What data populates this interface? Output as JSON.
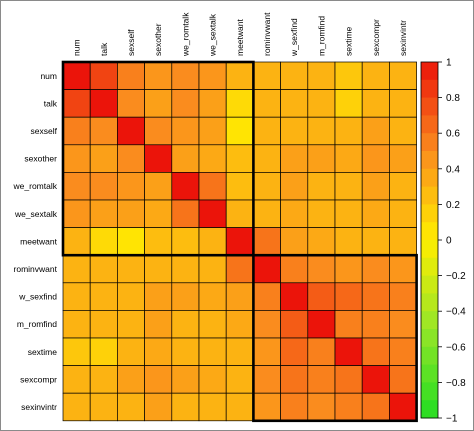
{
  "chart_data": {
    "type": "heatmap",
    "title": "",
    "variables": [
      "num",
      "talk",
      "sexself",
      "sexother",
      "we_romtalk",
      "we_sextalk",
      "meetwant",
      "rominvwant",
      "w_sexfind",
      "m_romfind",
      "sextime",
      "sexcompr",
      "sexinvintr"
    ],
    "matrix": [
      [
        1.0,
        0.8,
        0.55,
        0.45,
        0.5,
        0.45,
        0.3,
        0.3,
        0.3,
        0.3,
        0.2,
        0.3,
        0.3
      ],
      [
        0.8,
        1.0,
        0.5,
        0.4,
        0.5,
        0.4,
        0.1,
        0.3,
        0.3,
        0.3,
        0.15,
        0.3,
        0.3
      ],
      [
        0.55,
        0.5,
        1.0,
        0.5,
        0.45,
        0.4,
        0.05,
        0.3,
        0.3,
        0.3,
        0.3,
        0.4,
        0.3
      ],
      [
        0.45,
        0.4,
        0.5,
        1.0,
        0.4,
        0.35,
        0.25,
        0.3,
        0.4,
        0.4,
        0.35,
        0.45,
        0.4
      ],
      [
        0.5,
        0.5,
        0.45,
        0.4,
        1.0,
        0.6,
        0.25,
        0.3,
        0.4,
        0.3,
        0.3,
        0.4,
        0.3
      ],
      [
        0.45,
        0.4,
        0.4,
        0.35,
        0.6,
        1.0,
        0.3,
        0.3,
        0.35,
        0.3,
        0.3,
        0.35,
        0.3
      ],
      [
        0.3,
        0.1,
        0.05,
        0.25,
        0.25,
        0.3,
        1.0,
        0.6,
        0.4,
        0.35,
        0.3,
        0.3,
        0.3
      ],
      [
        0.3,
        0.3,
        0.3,
        0.3,
        0.3,
        0.3,
        0.6,
        1.0,
        0.55,
        0.5,
        0.45,
        0.5,
        0.45
      ],
      [
        0.3,
        0.3,
        0.3,
        0.4,
        0.4,
        0.35,
        0.4,
        0.55,
        1.0,
        0.7,
        0.65,
        0.6,
        0.55
      ],
      [
        0.3,
        0.3,
        0.3,
        0.4,
        0.3,
        0.3,
        0.35,
        0.5,
        0.7,
        1.0,
        0.55,
        0.55,
        0.5
      ],
      [
        0.2,
        0.15,
        0.3,
        0.35,
        0.3,
        0.3,
        0.3,
        0.45,
        0.65,
        0.55,
        1.0,
        0.6,
        0.55
      ],
      [
        0.3,
        0.3,
        0.4,
        0.45,
        0.4,
        0.35,
        0.3,
        0.5,
        0.6,
        0.55,
        0.6,
        1.0,
        0.6
      ],
      [
        0.3,
        0.3,
        0.3,
        0.4,
        0.3,
        0.3,
        0.3,
        0.45,
        0.55,
        0.5,
        0.55,
        0.6,
        1.0
      ]
    ],
    "clusters": [
      {
        "start": 0,
        "end": 6
      },
      {
        "start": 7,
        "end": 12
      }
    ],
    "colorbar": {
      "min": -1,
      "max": 1,
      "ticks": [
        "1",
        "0.8",
        "0.6",
        "0.4",
        "0.2",
        "0",
        "−0.2",
        "−0.4",
        "−0.6",
        "−0.8",
        "−1"
      ],
      "tick_values": [
        1,
        0.8,
        0.6,
        0.4,
        0.2,
        0,
        -0.2,
        -0.4,
        -0.6,
        -0.8,
        -1
      ]
    }
  }
}
